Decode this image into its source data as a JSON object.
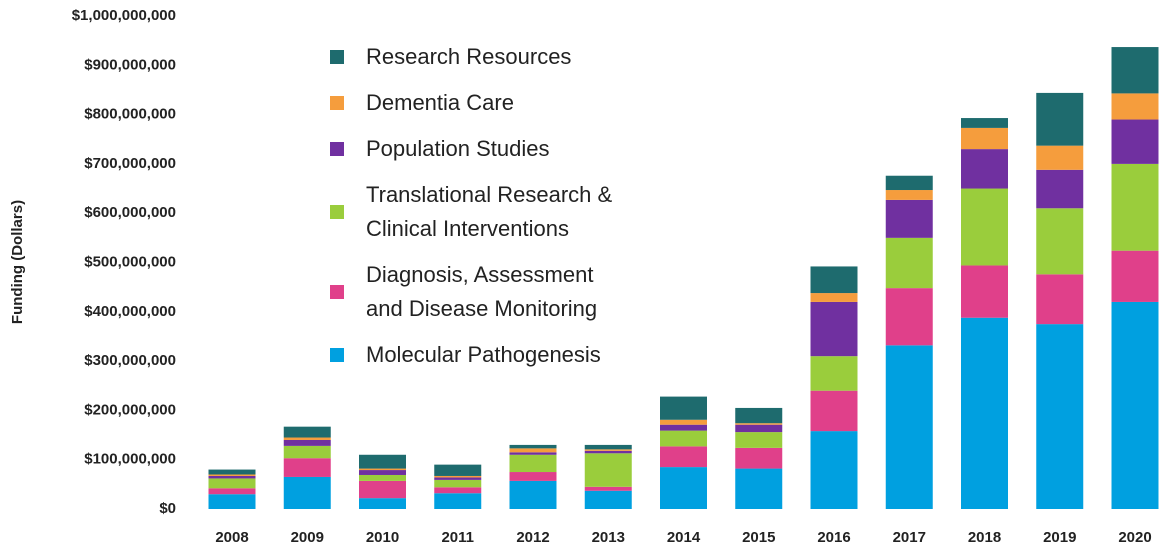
{
  "chart_data": {
    "type": "stacked_bar",
    "y_label": "Funding (Dollars)",
    "categories": [
      "2008",
      "2009",
      "2010",
      "2011",
      "2012",
      "2013",
      "2014",
      "2015",
      "2016",
      "2017",
      "2018",
      "2019",
      "2020"
    ],
    "series": [
      {
        "name": "Molecular Pathogenesis",
        "color": "#00a0e0",
        "values": [
          30000000,
          65000000,
          22000000,
          32000000,
          57000000,
          37000000,
          85000000,
          82000000,
          158000000,
          332000000,
          388000000,
          375000000,
          420000000
        ]
      },
      {
        "name": "Diagnosis, Assessment\nand Disease Monitoring",
        "color": "#e0408a",
        "values": [
          12000000,
          38000000,
          35000000,
          12000000,
          18000000,
          8000000,
          42000000,
          42000000,
          82000000,
          116000000,
          106000000,
          101000000,
          104000000
        ]
      },
      {
        "name": "Translational Research &\nClinical Interventions",
        "color": "#9acd3c",
        "values": [
          20000000,
          25000000,
          12000000,
          15000000,
          35000000,
          68000000,
          32000000,
          32000000,
          70000000,
          102000000,
          156000000,
          134000000,
          176000000
        ]
      },
      {
        "name": "Population Studies",
        "color": "#7030a0",
        "values": [
          5000000,
          12000000,
          10000000,
          5000000,
          5000000,
          5000000,
          12000000,
          15000000,
          110000000,
          77000000,
          80000000,
          78000000,
          90000000
        ]
      },
      {
        "name": "Dementia Care",
        "color": "#f59d3d",
        "values": [
          3000000,
          5000000,
          3000000,
          3000000,
          8000000,
          3000000,
          10000000,
          3000000,
          18000000,
          20000000,
          43000000,
          49000000,
          53000000
        ]
      },
      {
        "name": "Research Resources",
        "color": "#1e6b6e",
        "values": [
          10000000,
          22000000,
          28000000,
          23000000,
          7000000,
          9000000,
          47000000,
          31000000,
          54000000,
          29000000,
          20000000,
          107000000,
          94000000
        ]
      }
    ],
    "ylim": [
      0,
      1000000000
    ],
    "yticks": [
      {
        "value": 0,
        "label": "$0"
      },
      {
        "value": 100000000,
        "label": "$100,000,000"
      },
      {
        "value": 200000000,
        "label": "$200,000,000"
      },
      {
        "value": 300000000,
        "label": "$300,000,000"
      },
      {
        "value": 400000000,
        "label": "$400,000,000"
      },
      {
        "value": 500000000,
        "label": "$500,000,000"
      },
      {
        "value": 600000000,
        "label": "$600,000,000"
      },
      {
        "value": 700000000,
        "label": "$700,000,000"
      },
      {
        "value": 800000000,
        "label": "$800,000,000"
      },
      {
        "value": 900000000,
        "label": "$900,000,000"
      },
      {
        "value": 1000000000,
        "label": "$1,000,000,000"
      }
    ]
  }
}
